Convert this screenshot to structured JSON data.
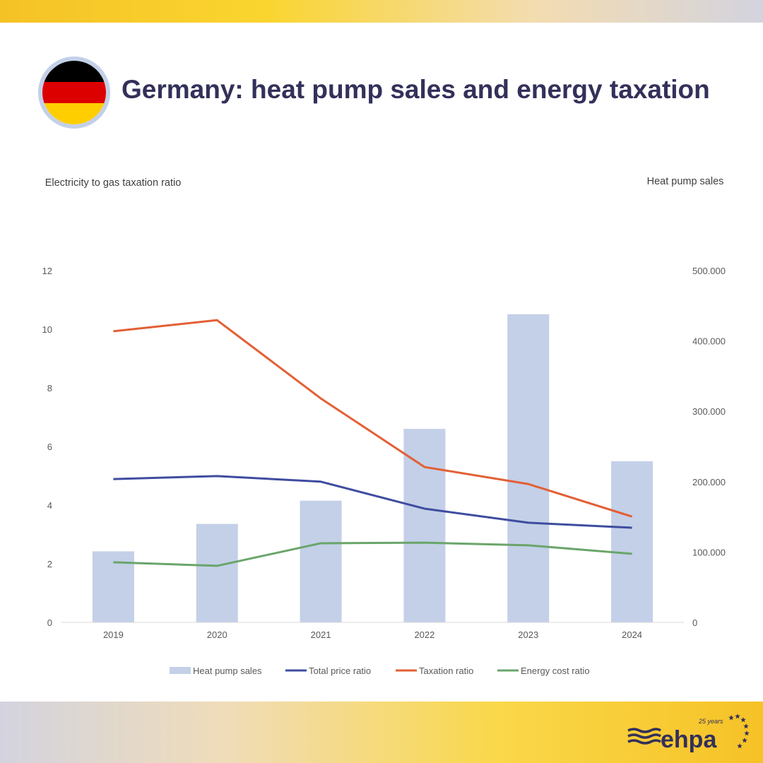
{
  "header": {
    "title": "Germany: heat pump sales and energy taxation",
    "flag": "germany-flag"
  },
  "colors": {
    "bars": "#c3d0e8",
    "total_price": "#3f4ca0",
    "taxation": "#e35f35",
    "energy_cost": "#6aa56a",
    "title": "#33305a"
  },
  "logo": {
    "text": "ehpa",
    "subtitle": "25 years"
  },
  "chart_data": {
    "type": "bar+line",
    "categories": [
      "2019",
      "2020",
      "2021",
      "2022",
      "2023",
      "2024"
    ],
    "ylabel_left": "Electricity to gas taxation ratio",
    "ylabel_right": "Heat pump sales",
    "ylim_left": [
      0,
      12
    ],
    "ylim_right": [
      0,
      500000
    ],
    "yticks_left": [
      "0",
      "2",
      "4",
      "6",
      "8",
      "10",
      "12"
    ],
    "yticks_right": [
      "0",
      "100.000",
      "200.000",
      "300.000",
      "400.000",
      "500.000"
    ],
    "grid": false,
    "legend_position": "bottom",
    "series": [
      {
        "name": "Heat pump sales",
        "type": "bar",
        "axis": "right",
        "values": [
          101000,
          140000,
          173000,
          275000,
          438000,
          229000
        ]
      },
      {
        "name": "Total price ratio",
        "type": "line",
        "axis": "left",
        "values": [
          4.89,
          4.99,
          4.8,
          3.88,
          3.4,
          3.23
        ]
      },
      {
        "name": "Taxation ratio",
        "type": "line",
        "axis": "left",
        "values": [
          9.93,
          10.31,
          7.64,
          5.3,
          4.72,
          3.61
        ]
      },
      {
        "name": "Energy cost ratio",
        "type": "line",
        "axis": "left",
        "values": [
          2.05,
          1.93,
          2.7,
          2.72,
          2.63,
          2.34
        ]
      }
    ]
  }
}
